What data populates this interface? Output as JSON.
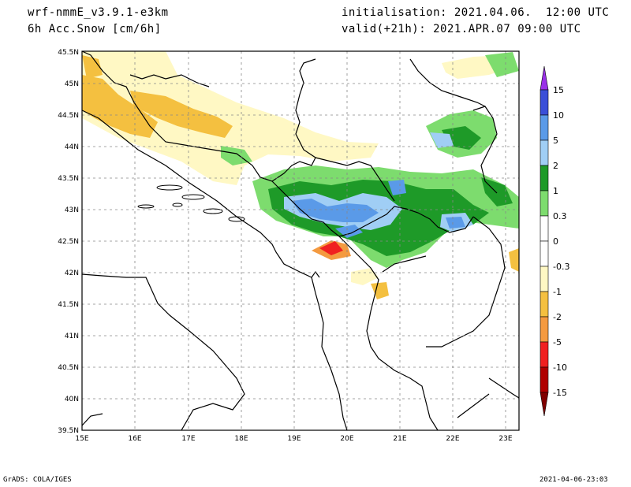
{
  "header": {
    "model": "wrf-nmmE_v3.9.1-e3km",
    "field": "6h Acc.Snow [cm/6h]",
    "init": "initialisation: 2021.04.06.  12:00 UTC",
    "valid": "valid(+21h): 2021.APR.07 09:00 UTC"
  },
  "axes": {
    "lat_labels": [
      "45.5N",
      "45N",
      "44.5N",
      "44N",
      "43.5N",
      "43N",
      "42.5N",
      "42N",
      "41.5N",
      "41N",
      "40.5N",
      "40N",
      "39.5N"
    ],
    "lon_labels": [
      "15E",
      "16E",
      "17E",
      "18E",
      "19E",
      "20E",
      "21E",
      "22E",
      "23E"
    ]
  },
  "colorbar": {
    "labels": [
      "15",
      "10",
      "5",
      "2",
      "1",
      "0.3",
      "0",
      "-0.3",
      "-1",
      "-2",
      "-5",
      "-10",
      "-15"
    ],
    "colors": [
      "#3a4fd8",
      "#5a9ae8",
      "#a0cef5",
      "#1e9a28",
      "#7ddc6e",
      "#ffffff",
      "#ffffff",
      "#fff8c4",
      "#f4c040",
      "#f49a40",
      "#f02020",
      "#b00000"
    ],
    "top_arrow": "#9a30e8",
    "bottom_arrow": "#800000"
  },
  "footer": {
    "left": "GrADS: COLA/IGES",
    "right": "2021-04-06-23:03"
  }
}
